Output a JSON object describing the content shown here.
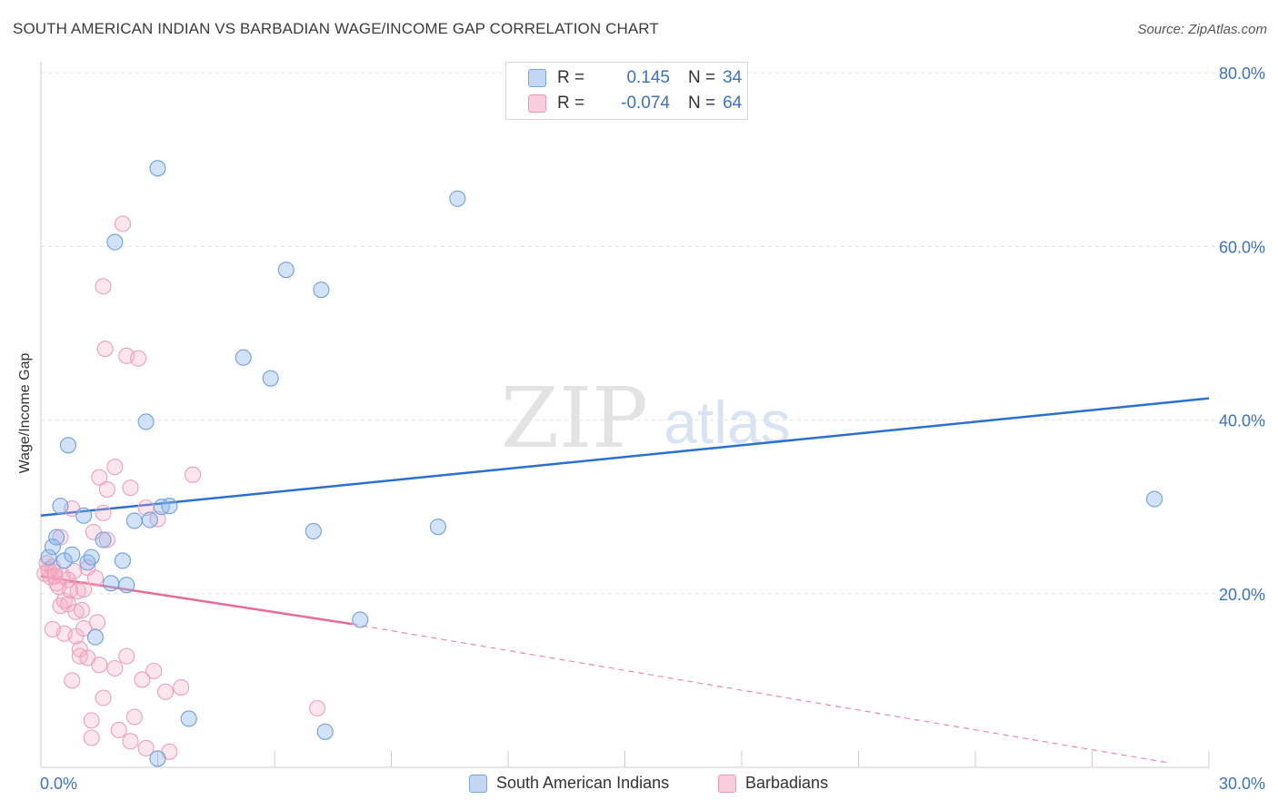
{
  "title": "SOUTH AMERICAN INDIAN VS BARBADIAN WAGE/INCOME GAP CORRELATION CHART",
  "source": "Source: ZipAtlas.com",
  "watermark": {
    "zip": "ZIP",
    "atlas": "atlas"
  },
  "legend": {
    "rows": [
      {
        "r_label": "R =",
        "r_value": "0.145",
        "n_label": "N =",
        "n_value": "34"
      },
      {
        "r_label": "R =",
        "r_value": "-0.074",
        "n_label": "N =",
        "n_value": "64"
      }
    ]
  },
  "bottom_legend": [
    "South American Indians",
    "Barbadians"
  ],
  "chart_data": {
    "type": "scatter",
    "title": "SOUTH AMERICAN INDIAN VS BARBADIAN WAGE/INCOME GAP CORRELATION CHART",
    "xlabel": "",
    "ylabel": "Wage/Income Gap",
    "xlim": [
      0,
      30
    ],
    "ylim": [
      0,
      80
    ],
    "x_tick_labels": [
      "0.0%",
      "30.0%"
    ],
    "y_ticks": [
      20,
      40,
      60,
      80
    ],
    "y_tick_labels": [
      "20.0%",
      "40.0%",
      "60.0%",
      "80.0%"
    ],
    "grid": true,
    "colors": {
      "blue": "#6fa1e0",
      "pink": "#f0a0ba",
      "blue_line": "#2b6fd0",
      "pink_line": "#e86b96",
      "tick_text": "#3a72c8"
    },
    "series": [
      {
        "name": "South American Indians",
        "color": "#6fa1e0",
        "points": [
          [
            0.2,
            24.2
          ],
          [
            0.3,
            25.4
          ],
          [
            0.4,
            26.5
          ],
          [
            0.5,
            30.1
          ],
          [
            0.6,
            23.8
          ],
          [
            0.7,
            37.1
          ],
          [
            0.8,
            24.5
          ],
          [
            1.1,
            29.0
          ],
          [
            1.2,
            23.6
          ],
          [
            1.3,
            24.2
          ],
          [
            1.4,
            15.0
          ],
          [
            1.6,
            26.2
          ],
          [
            1.8,
            21.2
          ],
          [
            2.1,
            23.8
          ],
          [
            2.2,
            21.0
          ],
          [
            2.4,
            28.4
          ],
          [
            2.7,
            39.8
          ],
          [
            2.8,
            28.5
          ],
          [
            3.0,
            69.0
          ],
          [
            3.1,
            30.0
          ],
          [
            3.3,
            30.1
          ],
          [
            3.0,
            1.0
          ],
          [
            3.8,
            5.6
          ],
          [
            1.9,
            60.5
          ],
          [
            5.2,
            47.2
          ],
          [
            5.9,
            44.8
          ],
          [
            6.3,
            57.3
          ],
          [
            7.0,
            27.2
          ],
          [
            7.2,
            55.0
          ],
          [
            7.3,
            4.1
          ],
          [
            8.2,
            17.0
          ],
          [
            10.2,
            27.7
          ],
          [
            10.7,
            65.5
          ],
          [
            28.6,
            30.9
          ]
        ]
      },
      {
        "name": "Barbadians",
        "color": "#f0a0ba",
        "points": [
          [
            0.1,
            22.3
          ],
          [
            0.15,
            23.5
          ],
          [
            0.2,
            22.8
          ],
          [
            0.25,
            21.9
          ],
          [
            0.3,
            23.1
          ],
          [
            0.3,
            15.9
          ],
          [
            0.35,
            22.5
          ],
          [
            0.4,
            21.2
          ],
          [
            0.45,
            20.8
          ],
          [
            0.5,
            18.6
          ],
          [
            0.5,
            26.5
          ],
          [
            0.55,
            22.1
          ],
          [
            0.6,
            19.2
          ],
          [
            0.6,
            15.4
          ],
          [
            0.7,
            21.6
          ],
          [
            0.7,
            18.8
          ],
          [
            0.75,
            20.4
          ],
          [
            0.8,
            29.8
          ],
          [
            0.8,
            10.0
          ],
          [
            0.85,
            22.6
          ],
          [
            0.9,
            17.9
          ],
          [
            0.9,
            15.1
          ],
          [
            0.95,
            20.3
          ],
          [
            1.0,
            13.6
          ],
          [
            1.0,
            12.8
          ],
          [
            1.05,
            18.1
          ],
          [
            1.1,
            20.5
          ],
          [
            1.1,
            16.0
          ],
          [
            1.2,
            23.0
          ],
          [
            1.2,
            12.6
          ],
          [
            1.3,
            5.4
          ],
          [
            1.3,
            3.4
          ],
          [
            1.35,
            27.1
          ],
          [
            1.4,
            21.8
          ],
          [
            1.45,
            16.7
          ],
          [
            1.5,
            11.8
          ],
          [
            1.5,
            33.4
          ],
          [
            1.6,
            8.0
          ],
          [
            1.6,
            29.3
          ],
          [
            1.6,
            55.4
          ],
          [
            1.65,
            48.2
          ],
          [
            1.7,
            26.2
          ],
          [
            1.7,
            32.0
          ],
          [
            1.9,
            34.6
          ],
          [
            1.9,
            11.4
          ],
          [
            2.0,
            4.3
          ],
          [
            2.1,
            62.6
          ],
          [
            2.2,
            47.4
          ],
          [
            2.2,
            12.8
          ],
          [
            2.3,
            3.0
          ],
          [
            2.3,
            32.2
          ],
          [
            2.4,
            5.8
          ],
          [
            2.5,
            47.1
          ],
          [
            2.6,
            10.1
          ],
          [
            2.7,
            2.2
          ],
          [
            2.7,
            29.9
          ],
          [
            2.9,
            11.1
          ],
          [
            3.0,
            28.6
          ],
          [
            3.2,
            8.7
          ],
          [
            3.3,
            1.8
          ],
          [
            3.6,
            9.2
          ],
          [
            3.9,
            33.7
          ],
          [
            7.1,
            6.8
          ],
          [
            0.35,
            22.0
          ]
        ]
      }
    ],
    "trend_lines": [
      {
        "series": "South American Indians",
        "from": [
          0,
          29.0
        ],
        "to": [
          30,
          42.5
        ],
        "style": "solid"
      },
      {
        "series": "Barbadians",
        "solid_from": [
          0,
          22.0
        ],
        "solid_to": [
          8.0,
          16.5
        ],
        "dashed_to": [
          29.0,
          0.5
        ]
      }
    ]
  }
}
